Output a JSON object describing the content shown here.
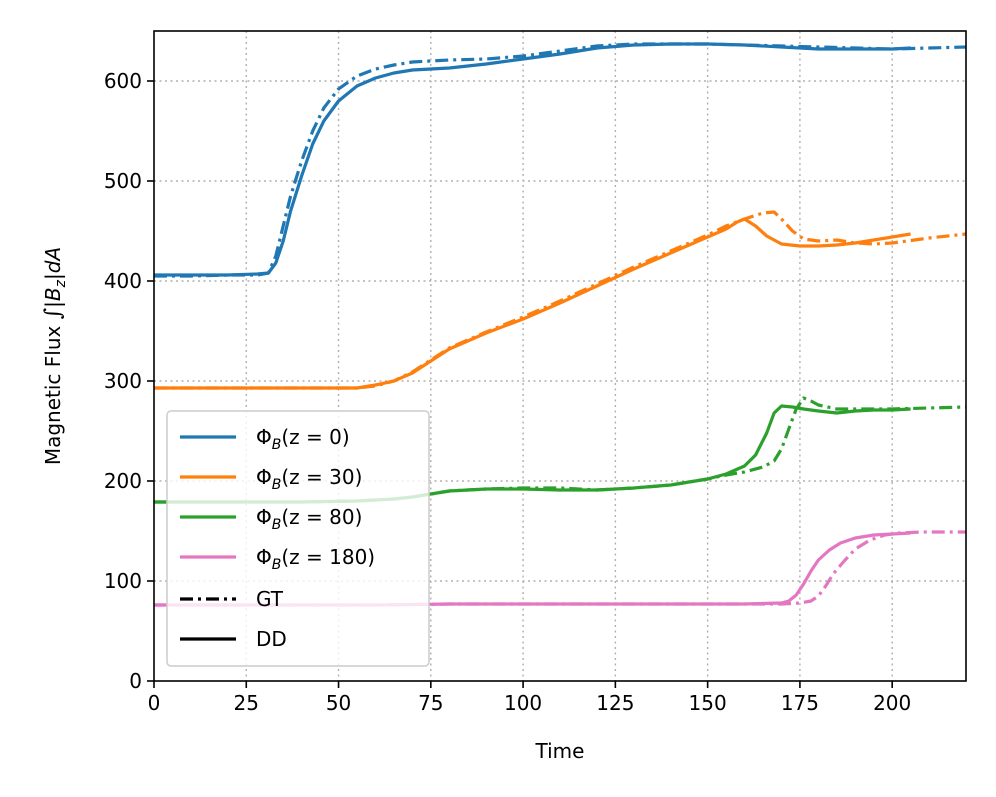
{
  "chart_data": {
    "type": "line",
    "xlabel": "Time",
    "ylabel": "Magnetic Flux ∫|B_z|dA",
    "ylabel_parts": {
      "prefix": "Magnetic Flux ",
      "integral": "∫",
      "bar1": "|",
      "B": "B",
      "sub": "z",
      "bar2": "|",
      "d": "d",
      "A": "A"
    },
    "xlim": [
      0,
      220
    ],
    "ylim": [
      0,
      650
    ],
    "xticks": [
      0,
      25,
      50,
      75,
      100,
      125,
      150,
      175,
      200
    ],
    "yticks": [
      0,
      100,
      200,
      300,
      400,
      500,
      600
    ],
    "grid": true,
    "legend_position": "lower-left",
    "series": [
      {
        "name": "Φ_B(z = 0)",
        "label_parts": {
          "phi": "Φ",
          "sub": "B",
          "args": "(z = 0)"
        },
        "color": "#1f77b4",
        "style": "DD",
        "x": [
          0,
          10,
          20,
          28,
          31,
          33,
          35,
          37,
          40,
          43,
          46,
          50,
          55,
          60,
          65,
          70,
          75,
          80,
          90,
          100,
          110,
          120,
          130,
          140,
          150,
          160,
          170,
          180,
          190,
          200,
          205
        ],
        "y": [
          406,
          406,
          406,
          407,
          408,
          418,
          440,
          470,
          505,
          537,
          560,
          580,
          595,
          603,
          608,
          611,
          612,
          613,
          617,
          622,
          627,
          633,
          636,
          637,
          637,
          636,
          634,
          632,
          632,
          632,
          633
        ]
      },
      {
        "name": "Φ_B(z = 0) GT",
        "color": "#1f77b4",
        "style": "GT",
        "x": [
          0,
          10,
          20,
          28,
          31,
          33,
          35,
          37,
          40,
          43,
          46,
          50,
          55,
          60,
          65,
          70,
          75,
          80,
          90,
          100,
          110,
          120,
          130,
          140,
          150,
          160,
          170,
          180,
          190,
          200,
          210,
          220
        ],
        "y": [
          405,
          405,
          406,
          406,
          408,
          425,
          455,
          485,
          520,
          550,
          573,
          592,
          605,
          612,
          616,
          619,
          620,
          621,
          622,
          625,
          630,
          635,
          637,
          637,
          637,
          636,
          635,
          634,
          633,
          632,
          633,
          634
        ]
      },
      {
        "name": "Φ_B(z = 30)",
        "label_parts": {
          "phi": "Φ",
          "sub": "B",
          "args": "(z = 30)"
        },
        "color": "#ff7f0e",
        "style": "DD",
        "x": [
          0,
          20,
          40,
          55,
          60,
          65,
          70,
          75,
          80,
          90,
          100,
          110,
          120,
          130,
          140,
          150,
          155,
          158,
          160,
          163,
          166,
          170,
          175,
          180,
          185,
          190,
          195,
          200,
          205
        ],
        "y": [
          293,
          293,
          293,
          293,
          296,
          300,
          308,
          320,
          332,
          348,
          362,
          378,
          395,
          412,
          428,
          444,
          452,
          459,
          462,
          455,
          445,
          437,
          435,
          435,
          436,
          438,
          441,
          444,
          447
        ]
      },
      {
        "name": "Φ_B(z = 30) GT",
        "color": "#ff7f0e",
        "style": "GT",
        "x": [
          0,
          20,
          40,
          55,
          60,
          65,
          70,
          75,
          80,
          90,
          100,
          110,
          120,
          130,
          140,
          150,
          155,
          160,
          165,
          168,
          170,
          173,
          176,
          180,
          185,
          190,
          195,
          200,
          210,
          220
        ],
        "y": [
          293,
          293,
          293,
          293,
          295,
          300,
          309,
          321,
          333,
          349,
          364,
          380,
          397,
          414,
          430,
          446,
          455,
          462,
          468,
          469,
          462,
          450,
          442,
          440,
          441,
          438,
          437,
          438,
          443,
          447
        ]
      },
      {
        "name": "Φ_B(z = 80)",
        "label_parts": {
          "phi": "Φ",
          "sub": "B",
          "args": "(z = 80)"
        },
        "color": "#2ca02c",
        "style": "DD",
        "x": [
          0,
          20,
          40,
          55,
          60,
          65,
          70,
          75,
          80,
          85,
          90,
          100,
          110,
          120,
          130,
          140,
          150,
          155,
          160,
          163,
          166,
          168,
          170,
          173,
          176,
          180,
          185,
          190,
          195,
          200,
          205
        ],
        "y": [
          179,
          179,
          179,
          180,
          181,
          182,
          184,
          187,
          190,
          191,
          192,
          192,
          191,
          191,
          193,
          196,
          202,
          207,
          215,
          226,
          248,
          268,
          275,
          274,
          272,
          270,
          268,
          270,
          271,
          271,
          272
        ]
      },
      {
        "name": "Φ_B(z = 80) GT",
        "color": "#2ca02c",
        "style": "GT",
        "x": [
          0,
          20,
          40,
          55,
          60,
          65,
          70,
          75,
          80,
          85,
          90,
          100,
          110,
          120,
          130,
          140,
          150,
          155,
          160,
          165,
          168,
          170,
          172,
          174,
          176,
          178,
          180,
          185,
          190,
          200,
          210,
          220
        ],
        "y": [
          179,
          179,
          179,
          180,
          181,
          182,
          184,
          187,
          190,
          191,
          192,
          193,
          193,
          191,
          193,
          196,
          202,
          206,
          209,
          214,
          220,
          232,
          252,
          272,
          283,
          280,
          276,
          272,
          272,
          272,
          273,
          274
        ]
      },
      {
        "name": "Φ_B(z = 180)",
        "label_parts": {
          "phi": "Φ",
          "sub": "B",
          "args": "(z = 180)"
        },
        "color": "#e377c2",
        "style": "DD",
        "x": [
          0,
          20,
          40,
          60,
          80,
          90,
          100,
          120,
          140,
          160,
          170,
          172,
          174,
          176,
          178,
          180,
          183,
          186,
          190,
          195,
          200,
          205
        ],
        "y": [
          76,
          76,
          76,
          76,
          77,
          77,
          77,
          77,
          77,
          77,
          78,
          80,
          86,
          97,
          110,
          121,
          131,
          138,
          143,
          146,
          147,
          148
        ]
      },
      {
        "name": "Φ_B(z = 180) GT",
        "color": "#e377c2",
        "style": "GT",
        "x": [
          0,
          20,
          40,
          60,
          80,
          90,
          100,
          120,
          140,
          160,
          170,
          175,
          178,
          180,
          182,
          184,
          187,
          190,
          194,
          198,
          202,
          208,
          215,
          220
        ],
        "y": [
          76,
          76,
          76,
          76,
          77,
          77,
          77,
          77,
          77,
          77,
          77,
          78,
          80,
          85,
          95,
          107,
          120,
          132,
          141,
          146,
          148,
          149,
          149,
          149
        ]
      }
    ],
    "style_legend": [
      {
        "label": "GT",
        "dash": "dashdot"
      },
      {
        "label": "DD",
        "dash": "solid"
      }
    ]
  }
}
